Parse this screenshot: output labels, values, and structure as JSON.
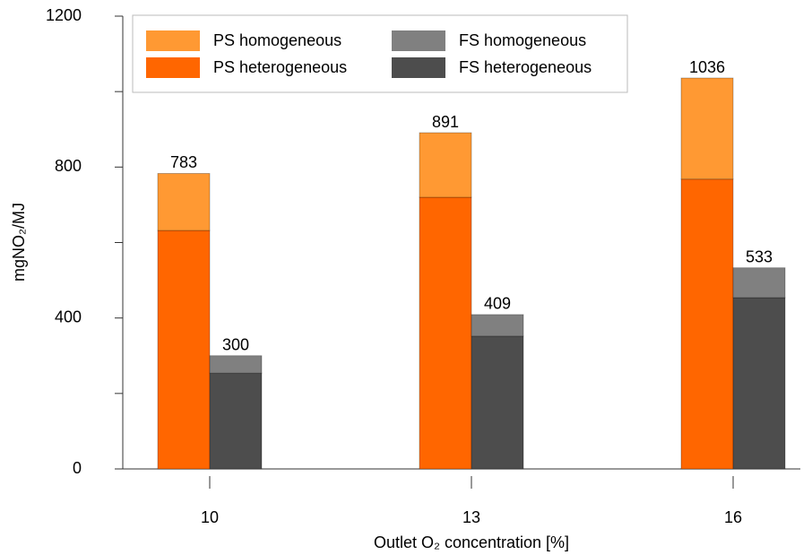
{
  "chart_data": {
    "type": "stacked_grouped_bar",
    "x_label": "Outlet O₂ concentration [%]",
    "y_label": "mgNO₂/MJ",
    "categories": [
      "10",
      "13",
      "16"
    ],
    "series": [
      {
        "name": "PS heterogeneous",
        "color": "#ff6600",
        "stack": 0,
        "values": [
          632,
          720,
          768
        ]
      },
      {
        "name": "PS homogeneous",
        "color": "#ff9933",
        "stack": 0,
        "values": [
          151,
          171,
          268
        ]
      },
      {
        "name": "FS heterogeneous",
        "color": "#4d4d4d",
        "stack": 1,
        "values": [
          254,
          352,
          454
        ]
      },
      {
        "name": "FS homogeneous",
        "color": "#808080",
        "stack": 1,
        "values": [
          46,
          57,
          79
        ]
      }
    ],
    "stack_totals": [
      [
        783,
        891,
        1036
      ],
      [
        300,
        409,
        533
      ]
    ],
    "ylim": [
      0,
      1200
    ],
    "yticks": [
      0,
      400,
      800,
      1200
    ],
    "yminor_ticks": [
      200,
      600,
      1000
    ],
    "legend": "top-left"
  }
}
